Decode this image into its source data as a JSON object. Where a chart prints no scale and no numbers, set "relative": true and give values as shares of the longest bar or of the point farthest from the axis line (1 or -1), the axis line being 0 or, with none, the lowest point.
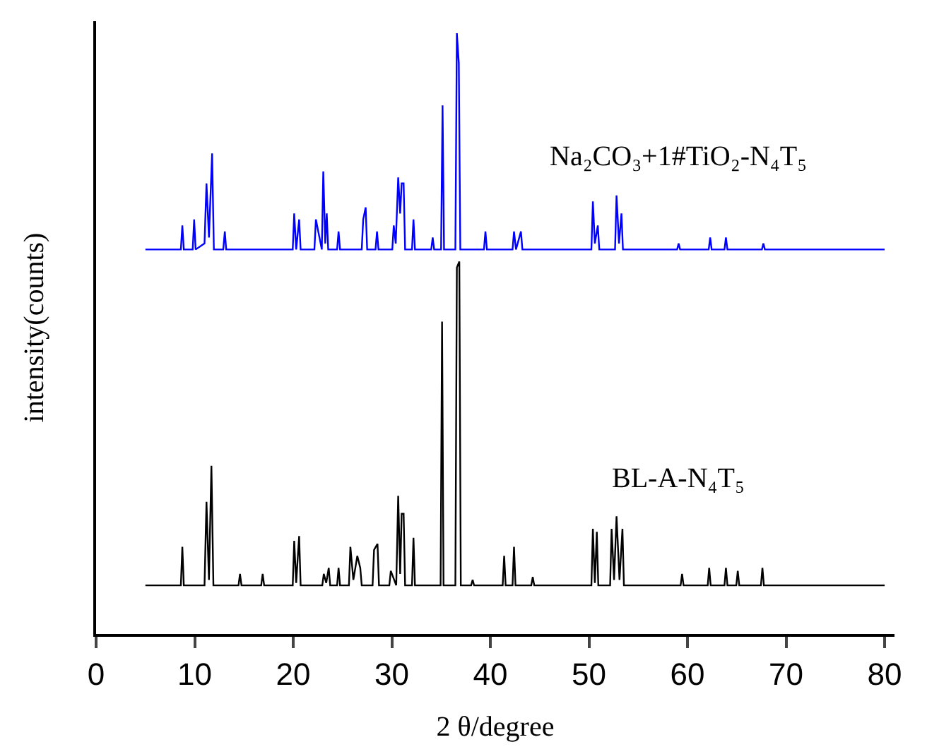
{
  "chart_data": {
    "type": "line",
    "relative": true,
    "xlabel": "2 θ/degree",
    "ylabel": "intensity(counts)",
    "xlim": [
      0,
      81
    ],
    "xticks": [
      0,
      10,
      20,
      30,
      40,
      50,
      60,
      70,
      80
    ],
    "legend": false,
    "marker": "none",
    "line_style": "solid",
    "series": [
      {
        "name": "Na₂CO₃+1#TiO₂-N₄T₅",
        "color": "#0000ff",
        "x": [
          5,
          8.6,
          8.75,
          8.9,
          9.8,
          9.95,
          10.1,
          11.0,
          11.2,
          11.45,
          11.77,
          11.95,
          12.9,
          13.06,
          13.2,
          19.95,
          20.1,
          20.3,
          20.6,
          20.75,
          22.15,
          22.3,
          22.9,
          23.05,
          23.25,
          23.4,
          23.55,
          24.45,
          24.6,
          24.75,
          26.95,
          27.1,
          27.35,
          27.5,
          28.35,
          28.5,
          28.65,
          30.05,
          30.2,
          30.4,
          30.65,
          30.85,
          31.0,
          31.2,
          31.35,
          32.05,
          32.2,
          32.35,
          34.0,
          34.15,
          34.3,
          35.0,
          35.15,
          35.3,
          36.45,
          36.6,
          36.8,
          36.95,
          39.35,
          39.5,
          39.65,
          42.25,
          42.4,
          42.6,
          43.1,
          43.25,
          50.25,
          50.4,
          50.6,
          50.9,
          51.05,
          52.65,
          52.8,
          53.05,
          53.3,
          53.45,
          58.95,
          59.1,
          59.25,
          62.15,
          62.3,
          62.45,
          63.75,
          63.9,
          64.05,
          67.55,
          67.7,
          67.85,
          80
        ],
        "values": [
          0.64,
          0.64,
          0.68,
          0.64,
          0.64,
          0.69,
          0.64,
          0.65,
          0.75,
          0.66,
          0.8,
          0.64,
          0.64,
          0.67,
          0.64,
          0.64,
          0.7,
          0.64,
          0.69,
          0.64,
          0.64,
          0.69,
          0.64,
          0.77,
          0.65,
          0.7,
          0.64,
          0.64,
          0.67,
          0.64,
          0.64,
          0.69,
          0.71,
          0.64,
          0.64,
          0.67,
          0.64,
          0.64,
          0.68,
          0.65,
          0.76,
          0.7,
          0.75,
          0.75,
          0.64,
          0.64,
          0.69,
          0.64,
          0.64,
          0.66,
          0.64,
          0.64,
          0.88,
          0.64,
          0.64,
          1.0,
          0.95,
          0.64,
          0.64,
          0.67,
          0.64,
          0.64,
          0.67,
          0.64,
          0.67,
          0.64,
          0.64,
          0.72,
          0.65,
          0.68,
          0.64,
          0.64,
          0.73,
          0.65,
          0.7,
          0.64,
          0.64,
          0.65,
          0.64,
          0.64,
          0.66,
          0.64,
          0.64,
          0.66,
          0.64,
          0.64,
          0.65,
          0.64,
          0.64
        ]
      },
      {
        "name": "BL-A-N₄T₅",
        "color": "#000000",
        "x": [
          5,
          8.6,
          8.75,
          8.9,
          11.0,
          11.2,
          11.45,
          11.7,
          11.9,
          14.45,
          14.6,
          14.75,
          16.75,
          16.9,
          17.05,
          19.95,
          20.1,
          20.3,
          20.6,
          20.75,
          22.95,
          23.1,
          23.35,
          23.6,
          23.75,
          24.45,
          24.6,
          24.75,
          25.65,
          25.8,
          26.1,
          26.5,
          26.8,
          26.95,
          28.05,
          28.2,
          28.55,
          28.7,
          29.75,
          29.9,
          30.45,
          30.65,
          30.85,
          31.0,
          31.2,
          31.35,
          32.05,
          32.2,
          32.35,
          34.95,
          35.1,
          35.25,
          36.45,
          36.6,
          36.85,
          37.0,
          38.05,
          38.2,
          38.35,
          41.25,
          41.4,
          41.55,
          42.25,
          42.4,
          42.55,
          44.15,
          44.3,
          44.45,
          50.25,
          50.4,
          50.6,
          50.8,
          50.95,
          52.15,
          52.3,
          52.55,
          52.8,
          53.1,
          53.4,
          53.55,
          59.3,
          59.45,
          59.6,
          62.05,
          62.2,
          62.35,
          63.75,
          63.9,
          64.05,
          64.95,
          65.1,
          65.25,
          67.45,
          67.6,
          67.75,
          80
        ],
        "values": [
          0.081,
          0.081,
          0.145,
          0.081,
          0.081,
          0.22,
          0.09,
          0.28,
          0.081,
          0.081,
          0.1,
          0.081,
          0.081,
          0.1,
          0.081,
          0.081,
          0.155,
          0.085,
          0.163,
          0.081,
          0.081,
          0.1,
          0.085,
          0.11,
          0.081,
          0.081,
          0.11,
          0.081,
          0.081,
          0.145,
          0.09,
          0.13,
          0.11,
          0.081,
          0.081,
          0.14,
          0.15,
          0.081,
          0.081,
          0.105,
          0.081,
          0.23,
          0.1,
          0.2,
          0.2,
          0.081,
          0.081,
          0.16,
          0.081,
          0.081,
          0.52,
          0.081,
          0.081,
          0.61,
          0.62,
          0.081,
          0.081,
          0.09,
          0.081,
          0.081,
          0.13,
          0.081,
          0.081,
          0.145,
          0.081,
          0.081,
          0.095,
          0.081,
          0.081,
          0.175,
          0.085,
          0.17,
          0.081,
          0.081,
          0.175,
          0.09,
          0.196,
          0.09,
          0.175,
          0.081,
          0.081,
          0.1,
          0.081,
          0.081,
          0.11,
          0.081,
          0.081,
          0.11,
          0.081,
          0.081,
          0.105,
          0.081,
          0.081,
          0.11,
          0.081,
          0.081
        ]
      }
    ]
  }
}
